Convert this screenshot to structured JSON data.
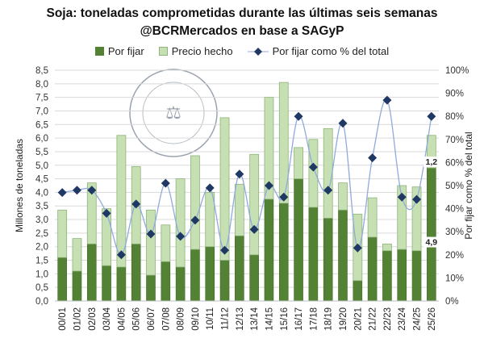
{
  "chart_data": {
    "type": "bar",
    "stacked": true,
    "title": "Soja: toneladas comprometidas durante las últimas seis semanas",
    "subtitle": "@BCRMercados en base a SAGyP",
    "ylabel": "Millones de toneladas",
    "y2label": "Por fijar como % del total",
    "ylim": [
      0,
      8.5
    ],
    "y2lim": [
      0,
      100
    ],
    "yticks": [
      "0,0",
      "0,5",
      "1,0",
      "1,5",
      "2,0",
      "2,5",
      "3,0",
      "3,5",
      "4,0",
      "4,5",
      "5,0",
      "5,5",
      "6,0",
      "6,5",
      "7,0",
      "7,5",
      "8,0",
      "8,5"
    ],
    "y2ticks": [
      "0%",
      "10%",
      "20%",
      "30%",
      "40%",
      "50%",
      "60%",
      "70%",
      "80%",
      "90%",
      "100%"
    ],
    "grid": true,
    "legend_position": "top",
    "categories": [
      "00/01",
      "01/02",
      "02/03",
      "03/04",
      "04/05",
      "05/06",
      "06/07",
      "07/08",
      "08/09",
      "09/10",
      "10/11",
      "11/12",
      "12/13",
      "13/14",
      "14/15",
      "15/16",
      "16/17",
      "17/18",
      "18/19",
      "19/20",
      "20/21",
      "21/22",
      "22/23",
      "23/24",
      "24/25",
      "25/26"
    ],
    "series": [
      {
        "name": "Por fijar",
        "type": "bar",
        "color": "#548235",
        "values": [
          1.6,
          1.1,
          2.1,
          1.3,
          1.25,
          2.1,
          0.95,
          1.45,
          1.25,
          1.9,
          2.0,
          1.5,
          2.4,
          1.7,
          3.75,
          3.6,
          4.5,
          3.45,
          3.05,
          3.35,
          0.75,
          2.35,
          1.85,
          1.9,
          1.85,
          4.9
        ]
      },
      {
        "name": "Precio hecho",
        "type": "bar",
        "color": "#c6e0b4",
        "values": [
          1.75,
          1.2,
          2.25,
          2.1,
          4.85,
          2.85,
          2.4,
          1.35,
          3.25,
          3.45,
          2.0,
          5.25,
          1.9,
          3.7,
          3.75,
          4.45,
          1.15,
          2.5,
          3.3,
          1.0,
          2.45,
          1.45,
          0.25,
          2.35,
          2.35,
          1.2
        ]
      },
      {
        "name": "Por fijar como % del total",
        "type": "line",
        "axis": "right",
        "color": "#1f3864",
        "values": [
          47,
          48,
          48,
          38,
          20,
          42,
          29,
          51,
          28,
          35,
          49,
          22,
          55,
          31,
          50,
          45,
          80,
          58,
          48,
          77,
          23,
          62,
          87,
          45,
          44,
          80
        ]
      }
    ],
    "data_labels": {
      "por_fijar_last": "4,9",
      "precio_hecho_last": "1,2"
    },
    "watermark": "BOLSA DE COMERCIO DE ROSARIO"
  }
}
